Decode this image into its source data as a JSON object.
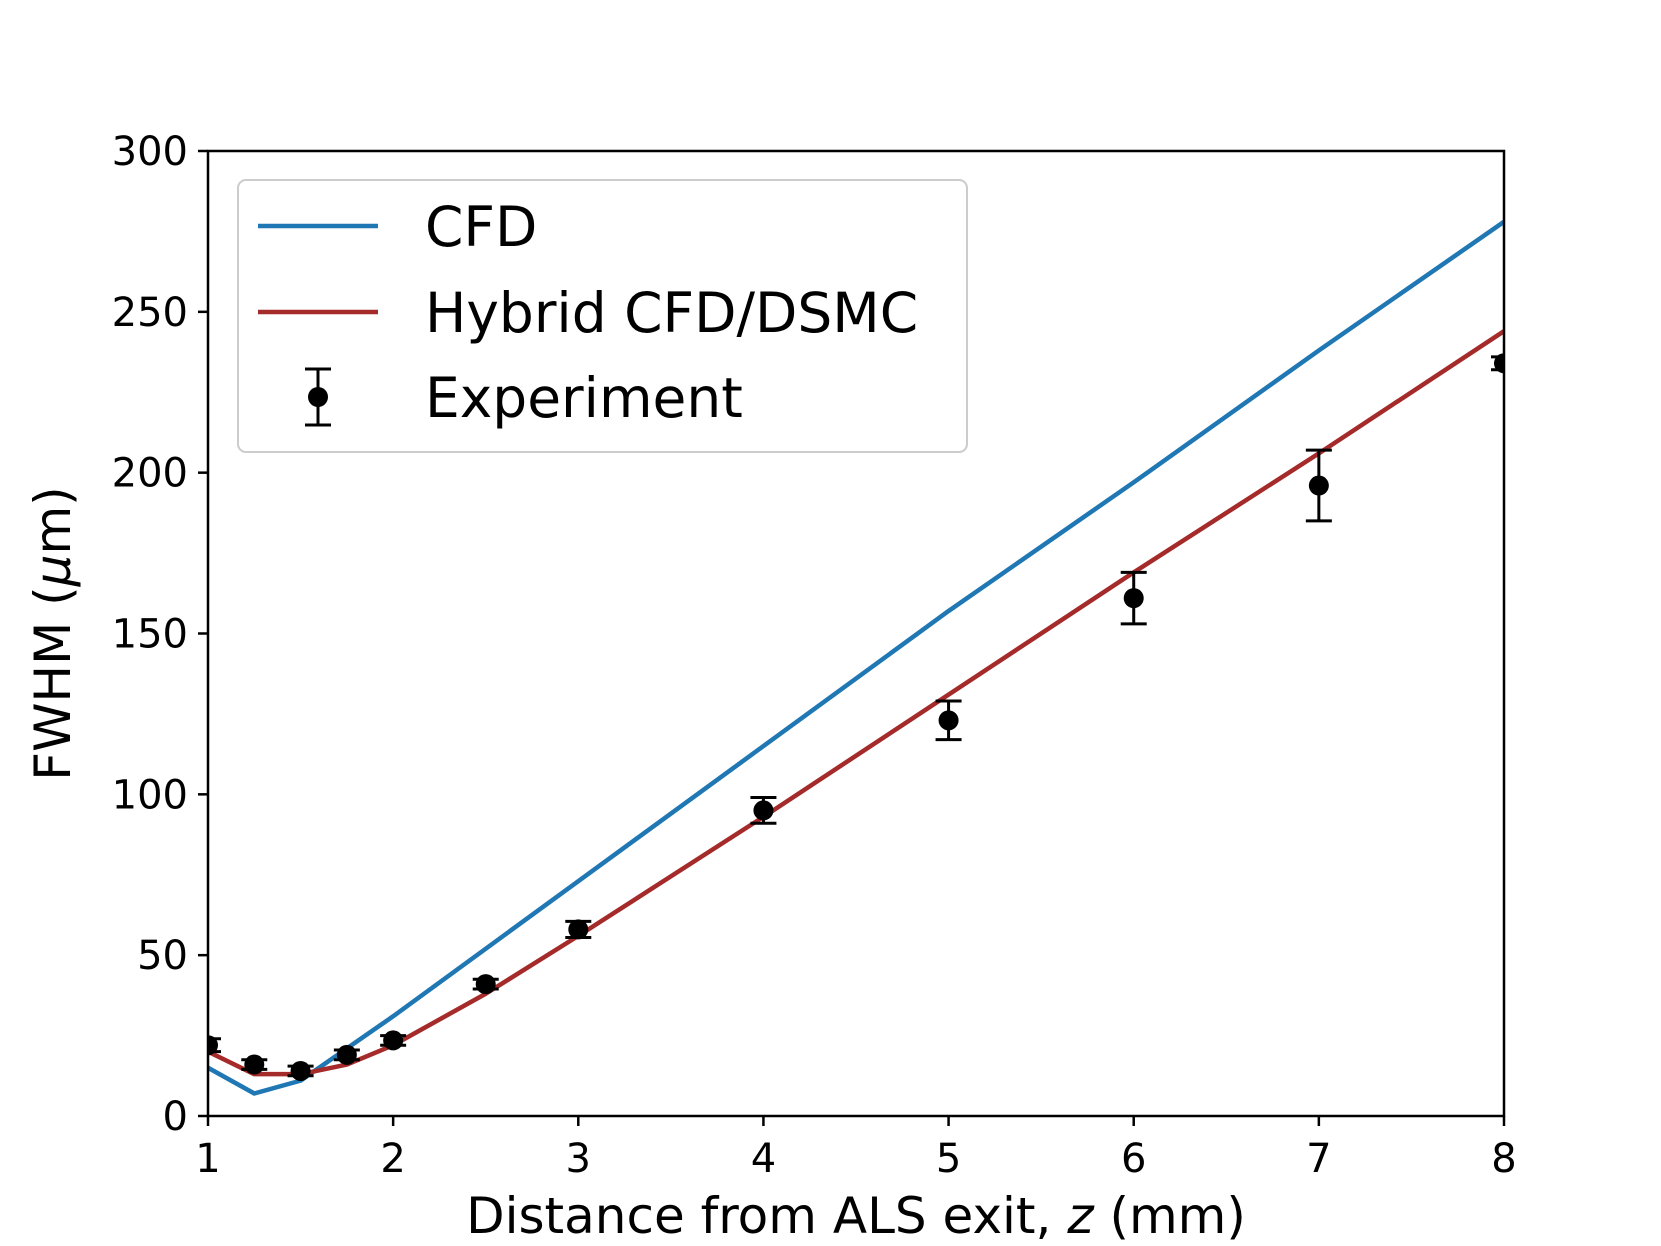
{
  "chart_data": {
    "type": "line",
    "xlabel_prefix": "Distance from ALS exit, ",
    "xlabel_var": "z",
    "xlabel_suffix": " (mm)",
    "ylabel_prefix": "FWHM (",
    "ylabel_mu": "μ",
    "ylabel_suffix": "m)",
    "xlim": [
      1,
      8
    ],
    "ylim": [
      0,
      300
    ],
    "xticks": [
      1,
      2,
      3,
      4,
      5,
      6,
      7,
      8
    ],
    "yticks": [
      0,
      50,
      100,
      150,
      200,
      250,
      300
    ],
    "legend_position": "top-left",
    "series": [
      {
        "name": "CFD",
        "color": "#1f77b4",
        "x": [
          1,
          1.25,
          1.5,
          2,
          3,
          4,
          5,
          6,
          7,
          8
        ],
        "y": [
          15,
          7,
          11,
          31,
          73,
          115,
          157,
          197,
          238,
          278
        ]
      },
      {
        "name": "Hybrid CFD/DSMC",
        "color": "#a52a2a",
        "x": [
          1,
          1.25,
          1.5,
          1.75,
          2,
          2.5,
          3,
          4,
          5,
          6,
          7,
          8
        ],
        "y": [
          20,
          13,
          13,
          16,
          22,
          38,
          56,
          93,
          131,
          169,
          206,
          244
        ]
      },
      {
        "name": "Experiment",
        "color": "#000000",
        "kind": "errorbar",
        "x": [
          1,
          1.25,
          1.5,
          1.75,
          2,
          2.5,
          3,
          4,
          5,
          6,
          7,
          8
        ],
        "y": [
          22,
          16,
          14,
          19,
          23.5,
          41,
          58,
          95,
          123,
          161,
          196,
          234
        ],
        "err": [
          2,
          1.5,
          1.5,
          1.5,
          1.5,
          1.5,
          2.5,
          4,
          6,
          8,
          11,
          2
        ]
      }
    ]
  }
}
